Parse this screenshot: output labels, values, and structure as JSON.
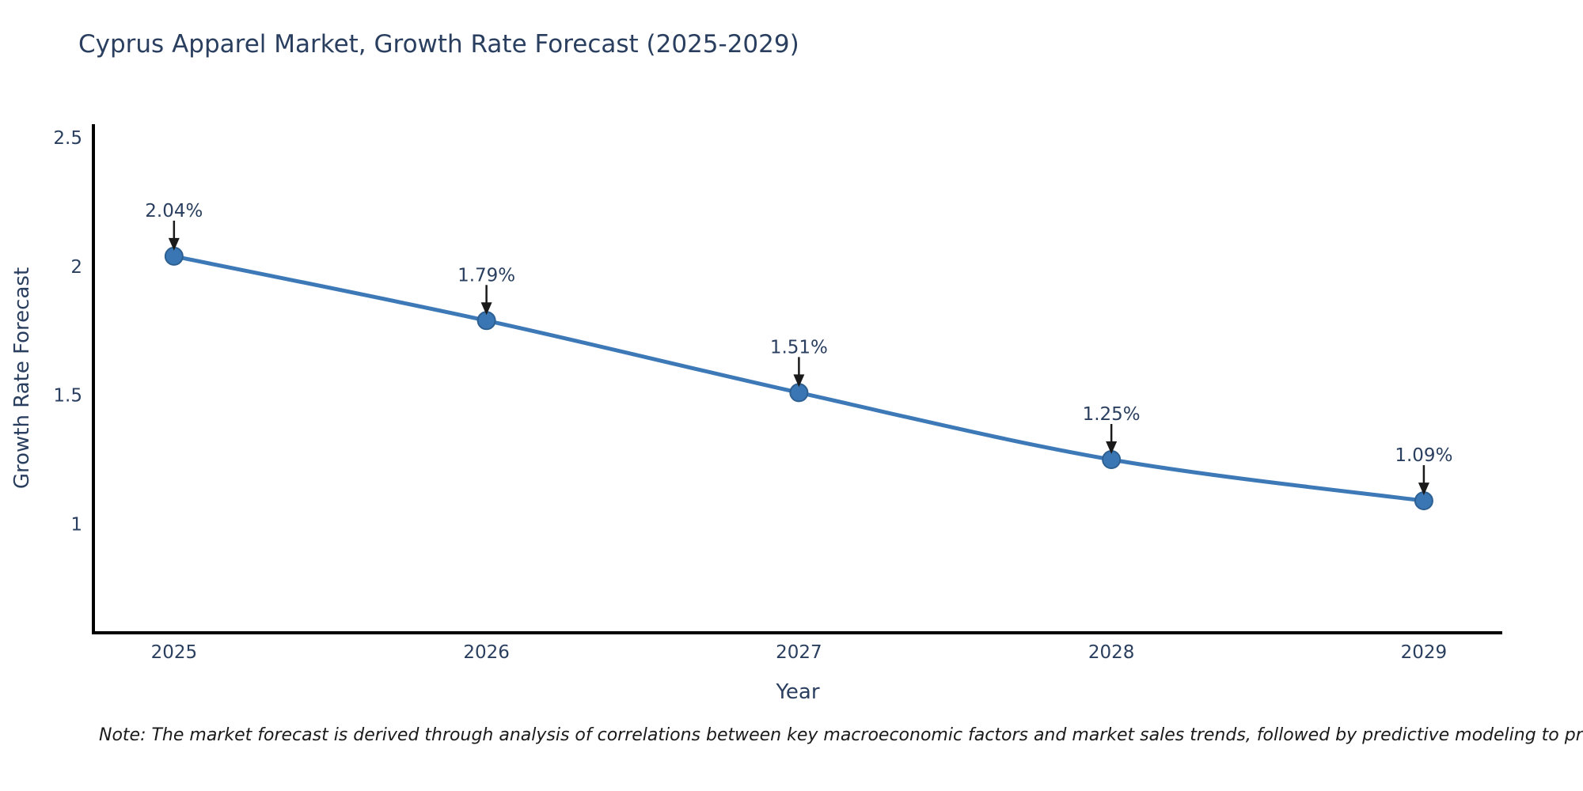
{
  "title": "Cyprus Apparel Market, Growth Rate Forecast (2025-2029)",
  "note": "Note: The market forecast is derived through analysis of correlations between key macroeconomic factors and market sales trends, followed by predictive modeling to project future sales",
  "chart_data": {
    "type": "line",
    "title": "Cyprus Apparel Market, Growth Rate Forecast (2025-2029)",
    "xlabel": "Year",
    "ylabel": "Growth Rate Forecast",
    "x": [
      2025,
      2026,
      2027,
      2028,
      2029
    ],
    "values": [
      2.04,
      1.79,
      1.51,
      1.25,
      1.09
    ],
    "point_labels": [
      "2.04%",
      "1.79%",
      "1.51%",
      "1.25%",
      "1.09%"
    ],
    "xtick_labels": [
      "2025",
      "2026",
      "2027",
      "2028",
      "2029"
    ],
    "xtick_values": [
      2025,
      2026,
      2027,
      2028,
      2029
    ],
    "ytick_labels": [
      "1",
      "1.5",
      "2",
      "2.5"
    ],
    "ytick_values": [
      1,
      1.5,
      2,
      2.5
    ],
    "xlim": [
      2024.742,
      2029.251
    ],
    "ylim": [
      0.577,
      2.553
    ],
    "grid": false,
    "legend": "none",
    "line_shape": "spline",
    "colors": {
      "line": "#3e79b7",
      "marker_fill": "#3a76b4",
      "marker_stroke": "#2e6092",
      "axis_line": "#000000",
      "tick_label": "#2a3f5f",
      "annotation_text": "#2a3f5f",
      "annotation_arrow": "#1a1a1a"
    }
  }
}
